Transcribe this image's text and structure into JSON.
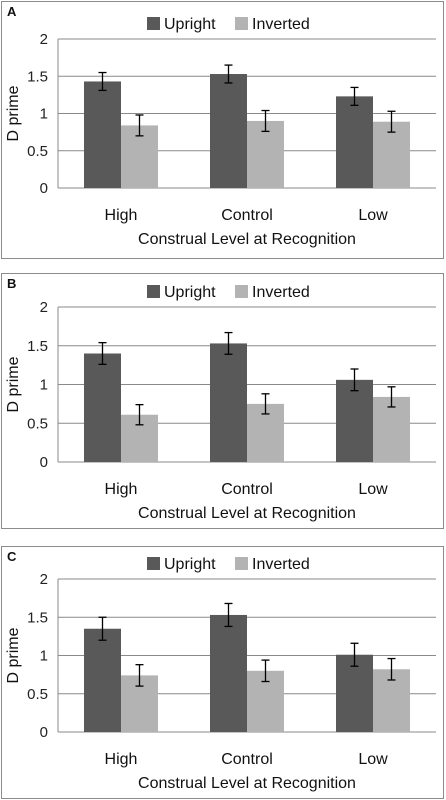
{
  "chart_data": [
    {
      "type": "bar",
      "panel_label": "A",
      "categories": [
        "High",
        "Control",
        "Low"
      ],
      "series": [
        {
          "name": "Upright",
          "color": "#595959",
          "values": [
            1.43,
            1.53,
            1.23
          ],
          "errors": [
            0.12,
            0.12,
            0.12
          ]
        },
        {
          "name": "Inverted",
          "color": "#b3b3b3",
          "values": [
            0.84,
            0.9,
            0.89
          ],
          "errors": [
            0.14,
            0.14,
            0.14
          ]
        }
      ],
      "xlabel": "Construal Level at Recognition",
      "ylabel": "D prime",
      "ylim": [
        0,
        2
      ],
      "yticks": [
        "0",
        "0.5",
        "1",
        "1.5",
        "2"
      ],
      "grid": true,
      "legend": "top-center"
    },
    {
      "type": "bar",
      "panel_label": "B",
      "categories": [
        "High",
        "Control",
        "Low"
      ],
      "series": [
        {
          "name": "Upright",
          "color": "#595959",
          "values": [
            1.4,
            1.53,
            1.06
          ],
          "errors": [
            0.14,
            0.14,
            0.14
          ]
        },
        {
          "name": "Inverted",
          "color": "#b3b3b3",
          "values": [
            0.61,
            0.75,
            0.84
          ],
          "errors": [
            0.13,
            0.13,
            0.13
          ]
        }
      ],
      "xlabel": "Construal Level at Recognition",
      "ylabel": "D prime",
      "ylim": [
        0,
        2
      ],
      "yticks": [
        "0",
        "0.5",
        "1",
        "1.5",
        "2"
      ],
      "grid": true,
      "legend": "top-center"
    },
    {
      "type": "bar",
      "panel_label": "C",
      "categories": [
        "High",
        "Control",
        "Low"
      ],
      "series": [
        {
          "name": "Upright",
          "color": "#595959",
          "values": [
            1.35,
            1.53,
            1.01
          ],
          "errors": [
            0.15,
            0.15,
            0.15
          ]
        },
        {
          "name": "Inverted",
          "color": "#b3b3b3",
          "values": [
            0.74,
            0.8,
            0.82
          ],
          "errors": [
            0.14,
            0.14,
            0.14
          ]
        }
      ],
      "xlabel": "Construal Level at Recognition",
      "ylabel": "D prime",
      "ylim": [
        0,
        2
      ],
      "yticks": [
        "0",
        "0.5",
        "1",
        "1.5",
        "2"
      ],
      "grid": true,
      "legend": "top-center"
    }
  ]
}
